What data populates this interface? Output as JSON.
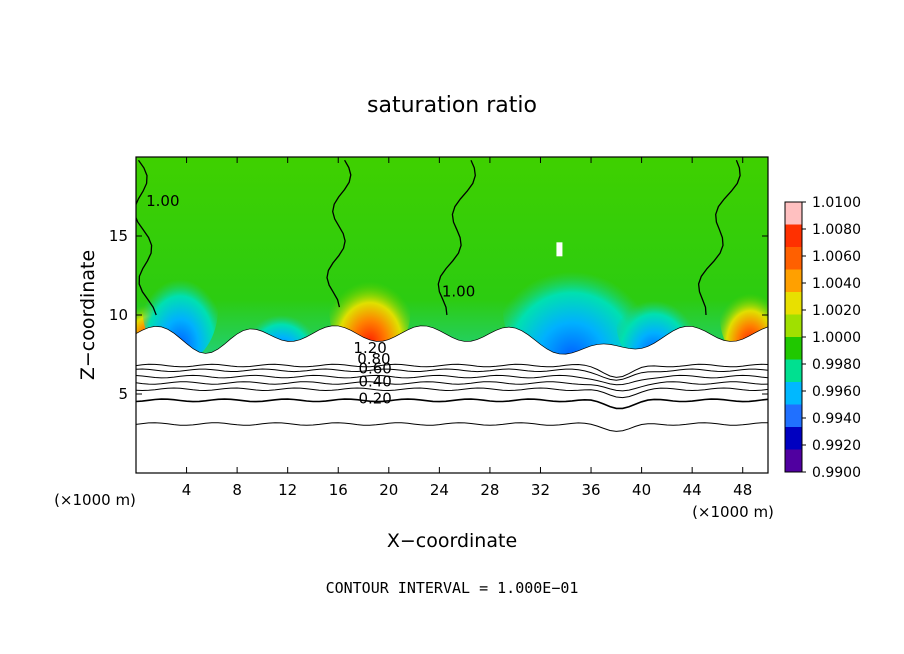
{
  "chart_data": {
    "type": "heatmap",
    "title": "saturation ratio",
    "xlabel": "X−coordinate",
    "ylabel": "Z−coordinate",
    "x_unit": "(×1000 m)",
    "y_unit": "(×1000 m)",
    "xlim": [
      0,
      50
    ],
    "ylim": [
      0,
      20
    ],
    "x_ticks": [
      4,
      8,
      12,
      16,
      20,
      24,
      28,
      32,
      36,
      40,
      44,
      48
    ],
    "y_ticks": [
      5,
      10,
      15
    ],
    "colorbar": {
      "labels": [
        "1.0100",
        "1.0080",
        "1.0060",
        "1.0040",
        "1.0020",
        "1.0000",
        "0.9980",
        "0.9960",
        "0.9940",
        "0.9920",
        "0.9900"
      ],
      "values": [
        1.01,
        1.008,
        1.006,
        1.004,
        1.002,
        1.0,
        0.998,
        0.996,
        0.994,
        0.992,
        0.99
      ],
      "colors": [
        "#ffc0c0",
        "#ff3000",
        "#ff6000",
        "#ffa000",
        "#e8e000",
        "#a0e000",
        "#20c800",
        "#00e090",
        "#00b8ff",
        "#2070ff",
        "#0000c0",
        "#5000a0"
      ]
    },
    "contour_labels": [
      {
        "text": "1.00",
        "x": 0.8,
        "z": 17.2
      },
      {
        "text": "1.00",
        "x": 24.2,
        "z": 11.5
      },
      {
        "text": "1.20",
        "x": 17.2,
        "z": 7.9
      },
      {
        "text": "0.80",
        "x": 17.5,
        "z": 7.2
      },
      {
        "text": "0.60",
        "x": 17.6,
        "z": 6.6
      },
      {
        "text": "0.40",
        "x": 17.6,
        "z": 5.8
      },
      {
        "text": "0.20",
        "x": 17.6,
        "z": 4.7
      }
    ],
    "contour_levels_z": [
      6.8,
      6.5,
      6.1,
      5.7,
      5.3,
      4.6,
      3.1
    ],
    "cloud_base_z": 8.8,
    "footer": "CONTOUR INTERVAL = 1.000E−01"
  }
}
